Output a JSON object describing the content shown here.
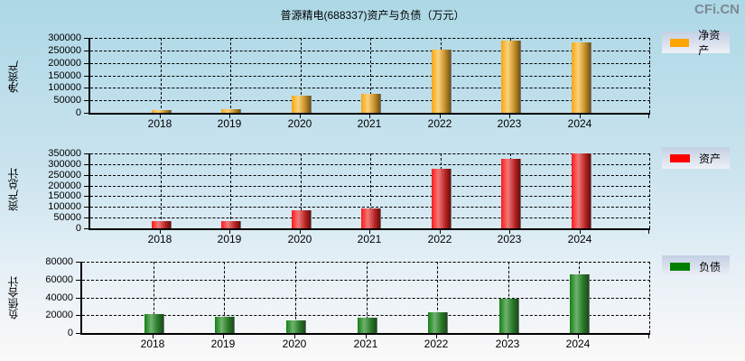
{
  "header": {
    "title": "普源精电(688337)资产与负债（万元）",
    "brand": "CFi.CN"
  },
  "colors": {
    "net_assets": "#ffa500",
    "assets": "#ff0000",
    "liabilities": "#008000"
  },
  "panels": [
    {
      "ylabel": "净资产",
      "legend": "净资产",
      "yticks": [
        "300000",
        "250000",
        "200000",
        "150000",
        "100000",
        "50000",
        "0"
      ],
      "xticks": [
        "2018",
        "2019",
        "2020",
        "2021",
        "2022",
        "2023",
        "2024"
      ]
    },
    {
      "ylabel": "资产总计",
      "legend": "资产",
      "yticks": [
        "350000",
        "300000",
        "250000",
        "200000",
        "150000",
        "100000",
        "50000",
        "0"
      ],
      "xticks": [
        "2018",
        "2019",
        "2020",
        "2021",
        "2022",
        "2023",
        "2024"
      ]
    },
    {
      "ylabel": "负债合计",
      "legend": "负债",
      "yticks": [
        "80000",
        "60000",
        "40000",
        "20000",
        "0"
      ],
      "xticks": [
        "2018",
        "2019",
        "2020",
        "2021",
        "2022",
        "2023",
        "2024"
      ]
    }
  ],
  "chart_data": [
    {
      "type": "bar",
      "title": "普源精电(688337)资产与负债（万元）",
      "xlabel": "",
      "ylabel": "净资产",
      "categories": [
        "2018",
        "2019",
        "2020",
        "2021",
        "2022",
        "2023",
        "2024"
      ],
      "series": [
        {
          "name": "净资产",
          "values": [
            10000,
            14000,
            67000,
            75000,
            253000,
            289000,
            282000
          ]
        }
      ],
      "ylim": [
        0,
        300000
      ],
      "grid": true,
      "legend_position": "right"
    },
    {
      "type": "bar",
      "title": "",
      "xlabel": "",
      "ylabel": "资产总计",
      "categories": [
        "2018",
        "2019",
        "2020",
        "2021",
        "2022",
        "2023",
        "2024"
      ],
      "series": [
        {
          "name": "资产",
          "values": [
            34000,
            33000,
            84000,
            93000,
            279000,
            326000,
            351000
          ]
        }
      ],
      "ylim": [
        0,
        350000
      ],
      "grid": true,
      "legend_position": "right"
    },
    {
      "type": "bar",
      "title": "",
      "xlabel": "",
      "ylabel": "负债合计",
      "categories": [
        "2018",
        "2019",
        "2020",
        "2021",
        "2022",
        "2023",
        "2024"
      ],
      "series": [
        {
          "name": "负债",
          "values": [
            21000,
            18000,
            14000,
            17000,
            23000,
            38000,
            66000
          ]
        }
      ],
      "ylim": [
        0,
        80000
      ],
      "grid": true,
      "legend_position": "right"
    }
  ]
}
